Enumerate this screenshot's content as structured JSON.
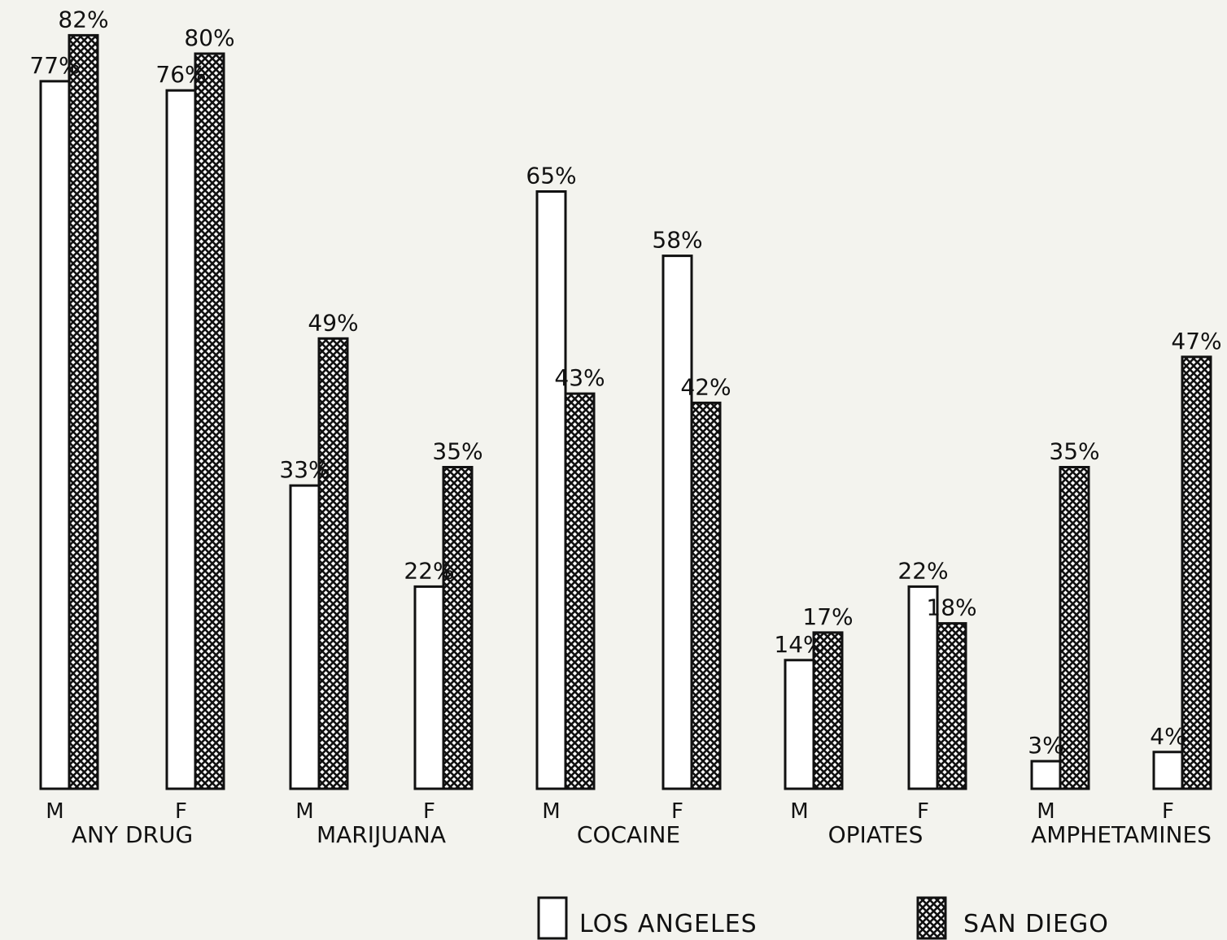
{
  "chart_data": {
    "type": "bar",
    "title": "",
    "xlabel": "",
    "ylabel": "",
    "ylim": [
      0,
      85
    ],
    "grid": false,
    "legend_placement": "bottom-right",
    "series": [
      {
        "name": "LOS ANGELES",
        "color": "#ffffff",
        "pattern": "none",
        "values": [
          77,
          76,
          33,
          22,
          65,
          58,
          14,
          22,
          3,
          4
        ],
        "labels": [
          "77%",
          "76%",
          "33%",
          "22%",
          "65%",
          "58%",
          "14%",
          "22%",
          "3%",
          "4%"
        ]
      },
      {
        "name": "SAN DIEGO",
        "color": "#111111",
        "pattern": "crosshatch",
        "values": [
          82,
          80,
          49,
          35,
          43,
          42,
          17,
          18,
          35,
          47
        ],
        "labels": [
          "82%",
          "80%",
          "49%",
          "35%",
          "43%",
          "42%",
          "17%",
          "18%",
          "35%",
          "47%"
        ]
      }
    ],
    "categories": [
      "M",
      "F",
      "M",
      "F",
      "M",
      "F",
      "M",
      "F",
      "M",
      "F"
    ],
    "groups": [
      {
        "label": "ANY DRUG",
        "categories": [
          "M",
          "F"
        ]
      },
      {
        "label": "MARIJUANA",
        "categories": [
          "M",
          "F"
        ]
      },
      {
        "label": "COCAINE",
        "categories": [
          "M",
          "F"
        ]
      },
      {
        "label": "OPIATES",
        "categories": [
          "M",
          "F"
        ]
      },
      {
        "label": "AMPHETAMINES",
        "categories": [
          "M",
          "F"
        ]
      }
    ]
  }
}
